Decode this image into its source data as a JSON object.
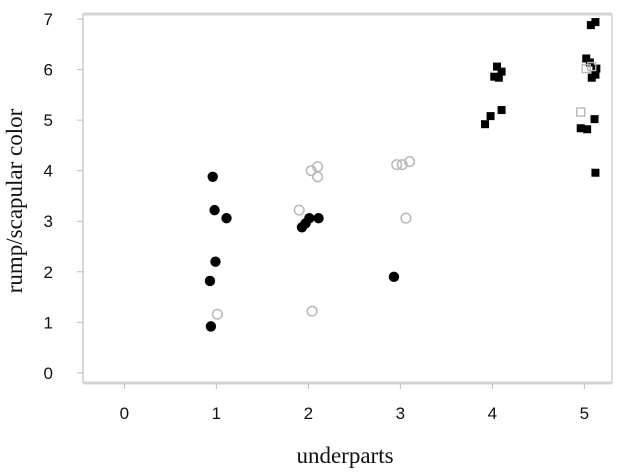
{
  "chart_data": {
    "type": "scatter",
    "title": "",
    "xlabel": "underparts",
    "ylabel": "rump/scapular color",
    "xlim": [
      -0.45,
      5.3
    ],
    "ylim": [
      -0.2,
      7.1
    ],
    "xticks": [
      "0",
      "1",
      "2",
      "3",
      "4",
      "5"
    ],
    "yticks": [
      "0",
      "1",
      "2",
      "3",
      "4",
      "5",
      "6",
      "7"
    ],
    "grid": false,
    "legend": "none",
    "series": [
      {
        "marker": "filled-circle",
        "color": "#000000",
        "points": [
          {
            "x": 0.94,
            "y": 0.92
          },
          {
            "x": 0.93,
            "y": 1.82
          },
          {
            "x": 0.99,
            "y": 2.2
          },
          {
            "x": 0.98,
            "y": 3.22
          },
          {
            "x": 0.96,
            "y": 3.88
          },
          {
            "x": 1.11,
            "y": 3.06
          },
          {
            "x": 1.93,
            "y": 2.88
          },
          {
            "x": 1.97,
            "y": 2.96
          },
          {
            "x": 2.01,
            "y": 3.06
          },
          {
            "x": 2.11,
            "y": 3.06
          },
          {
            "x": 2.93,
            "y": 1.9
          }
        ]
      },
      {
        "marker": "open-circle",
        "color": "#b8b8b8",
        "points": [
          {
            "x": 1.01,
            "y": 1.16
          },
          {
            "x": 2.04,
            "y": 1.22
          },
          {
            "x": 1.9,
            "y": 3.22
          },
          {
            "x": 2.03,
            "y": 4.0
          },
          {
            "x": 2.1,
            "y": 4.08
          },
          {
            "x": 2.1,
            "y": 3.88
          },
          {
            "x": 2.96,
            "y": 4.12
          },
          {
            "x": 3.02,
            "y": 4.12
          },
          {
            "x": 3.1,
            "y": 4.18
          },
          {
            "x": 3.06,
            "y": 3.06
          }
        ]
      },
      {
        "marker": "filled-square",
        "color": "#000000",
        "points": [
          {
            "x": 3.92,
            "y": 4.92
          },
          {
            "x": 3.98,
            "y": 5.08
          },
          {
            "x": 4.1,
            "y": 5.2
          },
          {
            "x": 4.02,
            "y": 5.86
          },
          {
            "x": 4.07,
            "y": 5.84
          },
          {
            "x": 4.05,
            "y": 6.06
          },
          {
            "x": 4.1,
            "y": 5.96
          },
          {
            "x": 4.96,
            "y": 4.84
          },
          {
            "x": 5.03,
            "y": 4.82
          },
          {
            "x": 5.11,
            "y": 5.02
          },
          {
            "x": 5.12,
            "y": 3.96
          },
          {
            "x": 5.02,
            "y": 6.22
          },
          {
            "x": 5.06,
            "y": 6.14
          },
          {
            "x": 5.08,
            "y": 5.84
          },
          {
            "x": 5.12,
            "y": 5.9
          },
          {
            "x": 5.13,
            "y": 6.02
          },
          {
            "x": 5.07,
            "y": 6.88
          },
          {
            "x": 5.12,
            "y": 6.94
          }
        ]
      },
      {
        "marker": "open-square",
        "color": "#b8b8b8",
        "points": [
          {
            "x": 4.96,
            "y": 5.16
          },
          {
            "x": 5.02,
            "y": 6.02
          },
          {
            "x": 5.08,
            "y": 6.06
          }
        ]
      }
    ]
  }
}
